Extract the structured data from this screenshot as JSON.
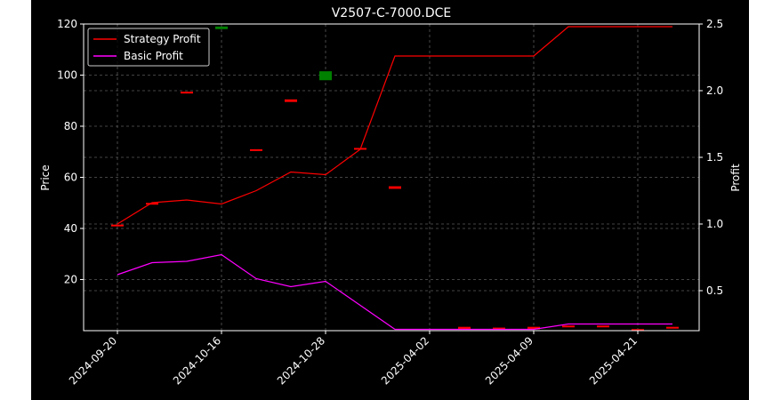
{
  "chart_data": {
    "type": "candlestick+line",
    "title": "V2507-C-7000.DCE",
    "ylabel_left": "Price",
    "ylabel_right": "Profit",
    "xlabel": "",
    "ylim_left": [
      0,
      120
    ],
    "ylim_right": [
      0.2,
      2.5
    ],
    "yticks_left": [
      20,
      40,
      60,
      80,
      100,
      120
    ],
    "yticks_right": [
      0.5,
      1.0,
      1.5,
      2.0,
      2.5
    ],
    "grid": true,
    "legend_position": "top-left",
    "x_tick_labels": [
      "2024-09-20",
      "2024-10-16",
      "2024-10-28",
      "2025-04-02",
      "2025-04-09",
      "2025-04-21"
    ],
    "x_tick_indices": [
      0,
      3,
      6,
      9,
      12,
      15
    ],
    "n_points": 17,
    "colors": {
      "strategy": "#ff0000",
      "basic": "#ff00ff",
      "up": "#008000",
      "down": "#ff0000",
      "background": "#000000",
      "figure": "#000000"
    },
    "candles": [
      {
        "i": 0,
        "open": 41.5,
        "close": 41.0
      },
      {
        "i": 1,
        "open": 50.0,
        "close": 49.5
      },
      {
        "i": 2,
        "open": 93.5,
        "close": 93.0
      },
      {
        "i": 3,
        "open": 118.0,
        "close": 119.0
      },
      {
        "i": 4,
        "open": 71.0,
        "close": 70.5
      },
      {
        "i": 5,
        "open": 90.5,
        "close": 89.5
      },
      {
        "i": 6,
        "open": 98.0,
        "close": 101.5
      },
      {
        "i": 7,
        "open": 71.5,
        "close": 71.0
      },
      {
        "i": 8,
        "open": 56.5,
        "close": 55.5
      },
      {
        "i": 10,
        "open": 1.5,
        "close": 0.5
      },
      {
        "i": 11,
        "open": 1.2,
        "close": 0.9
      },
      {
        "i": 12,
        "open": 1.5,
        "close": 0.5
      },
      {
        "i": 13,
        "open": 2.0,
        "close": 1.5
      },
      {
        "i": 14,
        "open": 2.0,
        "close": 1.5
      },
      {
        "i": 15,
        "open": 0.6,
        "close": 0.3
      },
      {
        "i": 16,
        "open": 1.5,
        "close": 1.2
      }
    ],
    "series": [
      {
        "name": "Strategy Profit",
        "axis": "right",
        "values": [
          1.0,
          1.16,
          1.18,
          1.15,
          1.25,
          1.39,
          1.37,
          1.56,
          2.26,
          2.26,
          2.26,
          2.26,
          2.26,
          2.48,
          2.48,
          2.48,
          2.48
        ]
      },
      {
        "name": "Basic Profit",
        "axis": "right",
        "values": [
          0.62,
          0.71,
          0.72,
          0.77,
          0.59,
          0.53,
          0.57,
          0.39,
          0.21,
          0.21,
          0.21,
          0.21,
          0.21,
          0.25,
          0.25,
          0.25,
          0.25
        ]
      }
    ]
  }
}
